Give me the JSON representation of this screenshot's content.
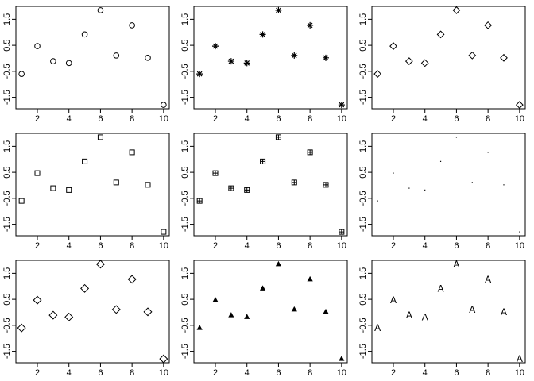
{
  "chart_data": [
    {
      "type": "scatter",
      "marker": "circle",
      "x": [
        1,
        2,
        3,
        4,
        5,
        6,
        7,
        8,
        9,
        10
      ],
      "y": [
        -0.6,
        0.47,
        -0.11,
        -0.18,
        0.92,
        1.85,
        0.11,
        1.27,
        0.02,
        -1.79
      ],
      "xlim": [
        0.64,
        10.36
      ],
      "ylim": [
        -1.94,
        2.0
      ],
      "xticks": [
        2,
        4,
        6,
        8,
        10
      ],
      "yticks": [
        -1.5,
        -0.5,
        0.5,
        1.5
      ]
    },
    {
      "type": "scatter",
      "marker": "asterisk",
      "x": [
        1,
        2,
        3,
        4,
        5,
        6,
        7,
        8,
        9,
        10
      ],
      "y": [
        -0.6,
        0.47,
        -0.11,
        -0.18,
        0.92,
        1.85,
        0.11,
        1.27,
        0.02,
        -1.79
      ],
      "xlim": [
        0.64,
        10.36
      ],
      "ylim": [
        -1.94,
        2.0
      ],
      "xticks": [
        2,
        4,
        6,
        8,
        10
      ],
      "yticks": [
        -1.5,
        -0.5,
        0.5,
        1.5
      ]
    },
    {
      "type": "scatter",
      "marker": "diamond",
      "x": [
        1,
        2,
        3,
        4,
        5,
        6,
        7,
        8,
        9,
        10
      ],
      "y": [
        -0.6,
        0.47,
        -0.11,
        -0.18,
        0.92,
        1.85,
        0.11,
        1.27,
        0.02,
        -1.79
      ],
      "xlim": [
        0.64,
        10.36
      ],
      "ylim": [
        -1.94,
        2.0
      ],
      "xticks": [
        2,
        4,
        6,
        8,
        10
      ],
      "yticks": [
        -1.5,
        -0.5,
        0.5,
        1.5
      ]
    },
    {
      "type": "scatter",
      "marker": "square",
      "x": [
        1,
        2,
        3,
        4,
        5,
        6,
        7,
        8,
        9,
        10
      ],
      "y": [
        -0.6,
        0.47,
        -0.11,
        -0.18,
        0.92,
        1.85,
        0.11,
        1.27,
        0.02,
        -1.79
      ],
      "xlim": [
        0.64,
        10.36
      ],
      "ylim": [
        -1.94,
        2.0
      ],
      "xticks": [
        2,
        4,
        6,
        8,
        10
      ],
      "yticks": [
        -1.5,
        -0.5,
        0.5,
        1.5
      ]
    },
    {
      "type": "scatter",
      "marker": "square-plus",
      "x": [
        1,
        2,
        3,
        4,
        5,
        6,
        7,
        8,
        9,
        10
      ],
      "y": [
        -0.6,
        0.47,
        -0.11,
        -0.18,
        0.92,
        1.85,
        0.11,
        1.27,
        0.02,
        -1.79
      ],
      "xlim": [
        0.64,
        10.36
      ],
      "ylim": [
        -1.94,
        2.0
      ],
      "xticks": [
        2,
        4,
        6,
        8,
        10
      ],
      "yticks": [
        -1.5,
        -0.5,
        0.5,
        1.5
      ]
    },
    {
      "type": "scatter",
      "marker": "dot",
      "x": [
        1,
        2,
        3,
        4,
        5,
        6,
        7,
        8,
        9,
        10
      ],
      "y": [
        -0.6,
        0.47,
        -0.11,
        -0.18,
        0.92,
        1.85,
        0.11,
        1.27,
        0.02,
        -1.79
      ],
      "xlim": [
        0.64,
        10.36
      ],
      "ylim": [
        -1.94,
        2.0
      ],
      "xticks": [
        2,
        4,
        6,
        8,
        10
      ],
      "yticks": [
        -1.5,
        -0.5,
        0.5,
        1.5
      ]
    },
    {
      "type": "scatter",
      "marker": "diamond-large",
      "x": [
        1,
        2,
        3,
        4,
        5,
        6,
        7,
        8,
        9,
        10
      ],
      "y": [
        -0.6,
        0.47,
        -0.11,
        -0.18,
        0.92,
        1.85,
        0.11,
        1.27,
        0.02,
        -1.79
      ],
      "xlim": [
        0.64,
        10.36
      ],
      "ylim": [
        -1.94,
        2.0
      ],
      "xticks": [
        2,
        4,
        6,
        8,
        10
      ],
      "yticks": [
        -1.5,
        -0.5,
        0.5,
        1.5
      ]
    },
    {
      "type": "scatter",
      "marker": "triangle",
      "x": [
        1,
        2,
        3,
        4,
        5,
        6,
        7,
        8,
        9,
        10
      ],
      "y": [
        -0.6,
        0.47,
        -0.11,
        -0.18,
        0.92,
        1.85,
        0.11,
        1.27,
        0.02,
        -1.79
      ],
      "xlim": [
        0.64,
        10.36
      ],
      "ylim": [
        -1.94,
        2.0
      ],
      "xticks": [
        2,
        4,
        6,
        8,
        10
      ],
      "yticks": [
        -1.5,
        -0.5,
        0.5,
        1.5
      ]
    },
    {
      "type": "scatter",
      "marker": "A",
      "x": [
        1,
        2,
        3,
        4,
        5,
        6,
        7,
        8,
        9,
        10
      ],
      "y": [
        -0.6,
        0.47,
        -0.11,
        -0.18,
        0.92,
        1.85,
        0.11,
        1.27,
        0.02,
        -1.79
      ],
      "xlim": [
        0.64,
        10.36
      ],
      "ylim": [
        -1.94,
        2.0
      ],
      "xticks": [
        2,
        4,
        6,
        8,
        10
      ],
      "yticks": [
        -1.5,
        -0.5,
        0.5,
        1.5
      ]
    }
  ]
}
